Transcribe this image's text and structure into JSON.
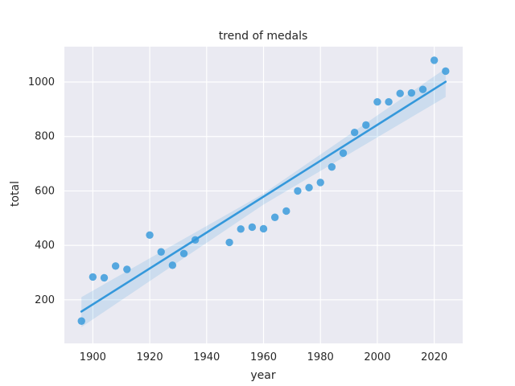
{
  "chart_data": {
    "type": "scatter",
    "title": "trend of medals",
    "xlabel": "year",
    "ylabel": "total",
    "xlim": [
      1890,
      2030
    ],
    "ylim": [
      40,
      1130
    ],
    "xticks": [
      1900,
      1920,
      1940,
      1960,
      1980,
      2000,
      2020
    ],
    "yticks": [
      200,
      400,
      600,
      800,
      1000
    ],
    "grid": true,
    "background": "#eaeaf2",
    "grid_color": "#ffffff",
    "point_color": "#3498db",
    "line_color": "#3498db",
    "band_color": "#3498db",
    "points": [
      {
        "x": 1896,
        "y": 122
      },
      {
        "x": 1900,
        "y": 284
      },
      {
        "x": 1904,
        "y": 281
      },
      {
        "x": 1908,
        "y": 324
      },
      {
        "x": 1912,
        "y": 312
      },
      {
        "x": 1920,
        "y": 438
      },
      {
        "x": 1924,
        "y": 376
      },
      {
        "x": 1928,
        "y": 327
      },
      {
        "x": 1932,
        "y": 370
      },
      {
        "x": 1936,
        "y": 420
      },
      {
        "x": 1948,
        "y": 411
      },
      {
        "x": 1952,
        "y": 460
      },
      {
        "x": 1956,
        "y": 467
      },
      {
        "x": 1960,
        "y": 461
      },
      {
        "x": 1964,
        "y": 503
      },
      {
        "x": 1968,
        "y": 526
      },
      {
        "x": 1972,
        "y": 600
      },
      {
        "x": 1976,
        "y": 612
      },
      {
        "x": 1980,
        "y": 631
      },
      {
        "x": 1984,
        "y": 688
      },
      {
        "x": 1988,
        "y": 739
      },
      {
        "x": 1992,
        "y": 815
      },
      {
        "x": 1996,
        "y": 842
      },
      {
        "x": 2000,
        "y": 927
      },
      {
        "x": 2004,
        "y": 927
      },
      {
        "x": 2008,
        "y": 958
      },
      {
        "x": 2012,
        "y": 960
      },
      {
        "x": 2016,
        "y": 973
      },
      {
        "x": 2020,
        "y": 1080
      },
      {
        "x": 2024,
        "y": 1040
      }
    ],
    "regression": {
      "x": [
        1896,
        2024
      ],
      "y": [
        157,
        1001
      ]
    },
    "confidence_band": {
      "x": [
        1896,
        1960,
        2024
      ],
      "lower": [
        100,
        550,
        945
      ],
      "upper": [
        210,
        590,
        1050
      ]
    }
  }
}
